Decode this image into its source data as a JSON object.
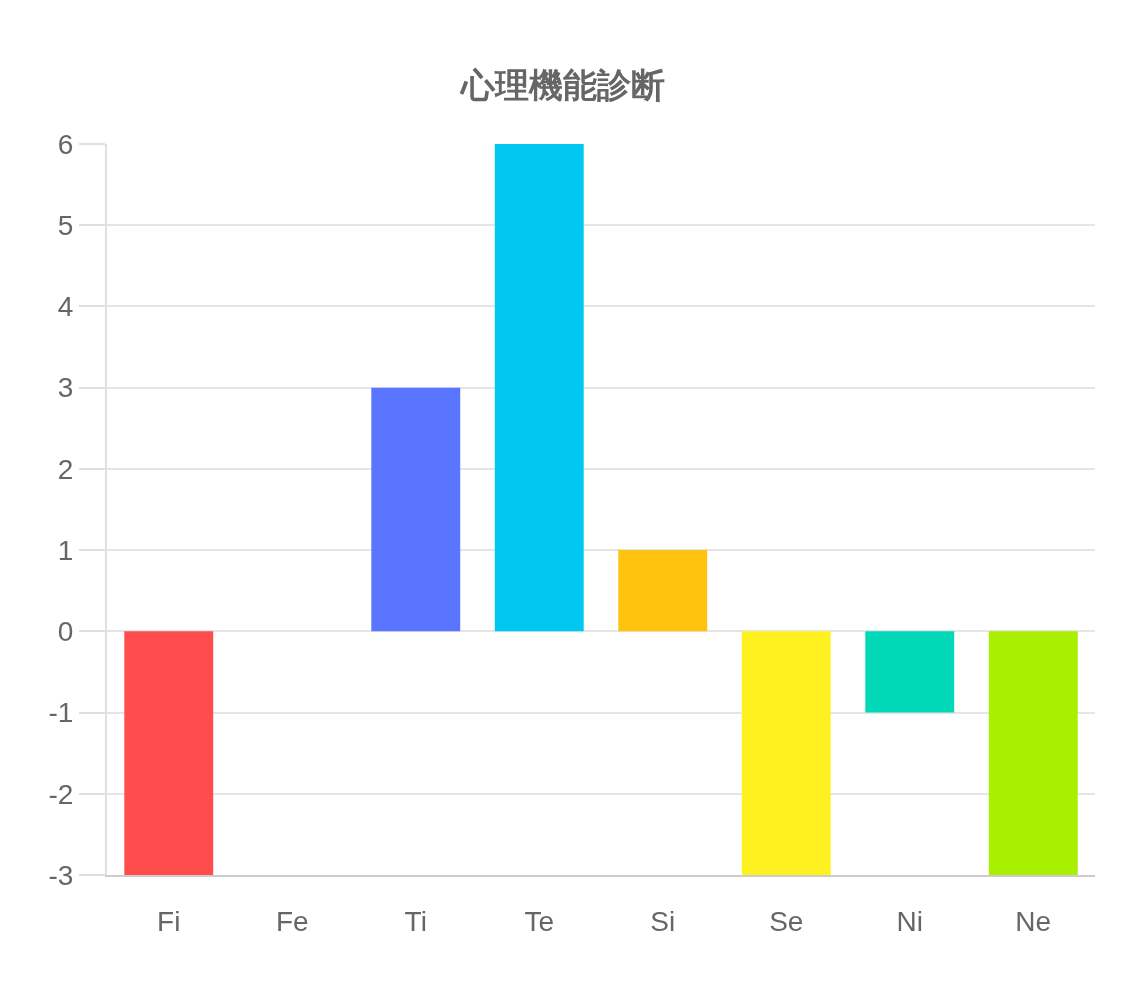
{
  "chart_data": {
    "type": "bar",
    "title": "心理機能診断",
    "categories": [
      "Fi",
      "Fe",
      "Ti",
      "Te",
      "Si",
      "Se",
      "Ni",
      "Ne"
    ],
    "values": [
      -3,
      0,
      3,
      6,
      1,
      -3,
      -1,
      -3
    ],
    "colors": [
      "#ff4d4d",
      "#ff9f40",
      "#5a75ff",
      "#00c8f0",
      "#ffc20e",
      "#fff020",
      "#00d8b8",
      "#a8f000"
    ],
    "ylim": [
      -3,
      6
    ],
    "yticks": [
      -3,
      -2,
      -1,
      0,
      1,
      2,
      3,
      4,
      5,
      6
    ],
    "grid": "y"
  }
}
